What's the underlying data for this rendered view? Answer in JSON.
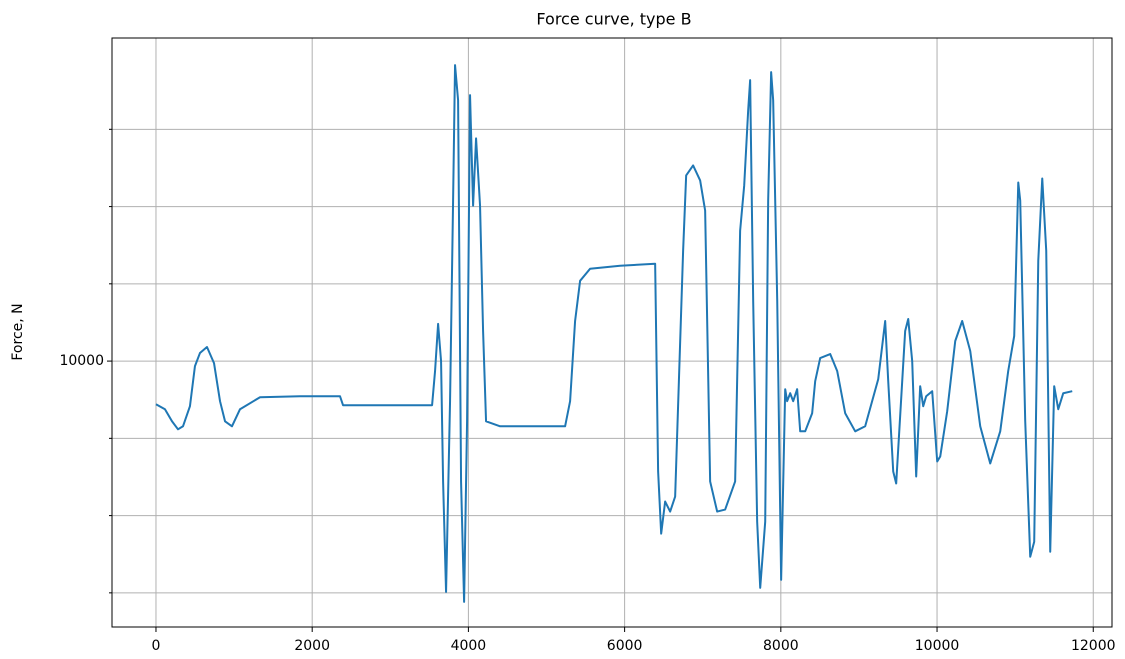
{
  "chart_data": {
    "type": "line",
    "title": "Force curve, type B",
    "y_label": "Force, N",
    "x": [
      0,
      115,
      205,
      282,
      346,
      435,
      499,
      563,
      653,
      743,
      820,
      884,
      973,
      1076,
      1332,
      1844,
      2356,
      2395,
      2869,
      3535,
      3573,
      3612,
      3650,
      3676,
      3714,
      3765,
      3804,
      3829,
      3868,
      3906,
      3945,
      3983,
      4021,
      4060,
      4098,
      4149,
      4188,
      4226,
      4406,
      5238,
      5302,
      5366,
      5430,
      5558,
      5942,
      6391,
      6429,
      6468,
      6519,
      6583,
      6647,
      6749,
      6788,
      6877,
      6967,
      7031,
      7095,
      7185,
      7287,
      7415,
      7479,
      7531,
      7582,
      7607,
      7646,
      7697,
      7736,
      7800,
      7838,
      7876,
      7902,
      7954,
      8004,
      8056,
      8081,
      8120,
      8158,
      8209,
      8248,
      8312,
      8401,
      8440,
      8504,
      8632,
      8722,
      8824,
      8952,
      9080,
      9247,
      9336,
      9375,
      9439,
      9477,
      9554,
      9592,
      9631,
      9682,
      9733,
      9784,
      9823,
      9861,
      9938,
      10002,
      10041,
      10130,
      10233,
      10322,
      10425,
      10553,
      10681,
      10809,
      10911,
      10988,
      11040,
      11065,
      11129,
      11193,
      11244,
      11296,
      11347,
      11398,
      11449,
      11500,
      11552,
      11616,
      11731
    ],
    "values": [
      9442,
      9377,
      9221,
      9117,
      9156,
      9416,
      9935,
      10104,
      10182,
      9974,
      9481,
      9221,
      9156,
      9377,
      9532,
      9545,
      9545,
      9429,
      9429,
      9429,
      9870,
      10481,
      10000,
      8442,
      7013,
      9481,
      12078,
      13831,
      13377,
      8442,
      6883,
      9221,
      13442,
      12013,
      12883,
      12013,
      10390,
      9221,
      9156,
      9156,
      9481,
      10519,
      11039,
      11195,
      11234,
      11260,
      8571,
      7766,
      8182,
      8052,
      8247,
      11429,
      12403,
      12532,
      12338,
      11948,
      8442,
      8052,
      8078,
      8442,
      11688,
      12273,
      13247,
      13636,
      10779,
      7922,
      7065,
      7922,
      12078,
      13740,
      13377,
      10779,
      7169,
      9636,
      9481,
      9584,
      9481,
      9636,
      9091,
      9091,
      9325,
      9740,
      10039,
      10091,
      9870,
      9325,
      9091,
      9156,
      9766,
      10519,
      9740,
      8571,
      8416,
      9740,
      10390,
      10545,
      10000,
      8506,
      9675,
      9416,
      9545,
      9610,
      8701,
      8766,
      9351,
      10260,
      10519,
      10130,
      9156,
      8675,
      9091,
      9870,
      10325,
      12312,
      12078,
      9221,
      7468,
      7662,
      11299,
      12364,
      11429,
      7532,
      9675,
      9377,
      9584,
      9610
    ],
    "color": "#1f77b4",
    "xlim": [
      -563,
      12240
    ],
    "xticks": [
      0,
      2000,
      4000,
      6000,
      8000,
      10000,
      12000
    ],
    "ylim": [
      6558,
      14182
    ],
    "yticks": [
      10000
    ],
    "y_minor_ticks": [
      7000,
      8000,
      9000,
      11000,
      12000,
      13000
    ],
    "grid": true
  }
}
